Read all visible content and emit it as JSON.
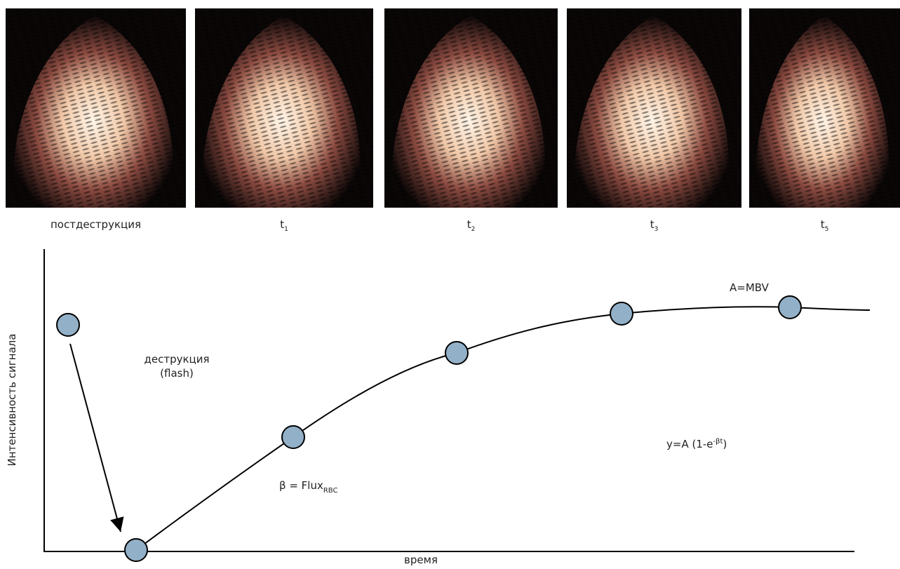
{
  "images": [
    {
      "caption": "постдеструкция"
    },
    {
      "caption": "t",
      "subscript": "1"
    },
    {
      "caption": "t",
      "subscript": "2"
    },
    {
      "caption": "t",
      "subscript": "3"
    },
    {
      "caption": "t",
      "subscript": "5"
    }
  ],
  "diagram": {
    "y_axis_label": "Интенсивность сигнала",
    "x_axis_label": "время",
    "destruction": "деструкция",
    "flash": "(flash)",
    "plateau": "A=MBV",
    "formula": {
      "base": "y=A (1-e",
      "superscript": "-βt",
      "close": ")"
    },
    "beta": {
      "base": "β = Flux",
      "subscript": "RBC"
    }
  }
}
